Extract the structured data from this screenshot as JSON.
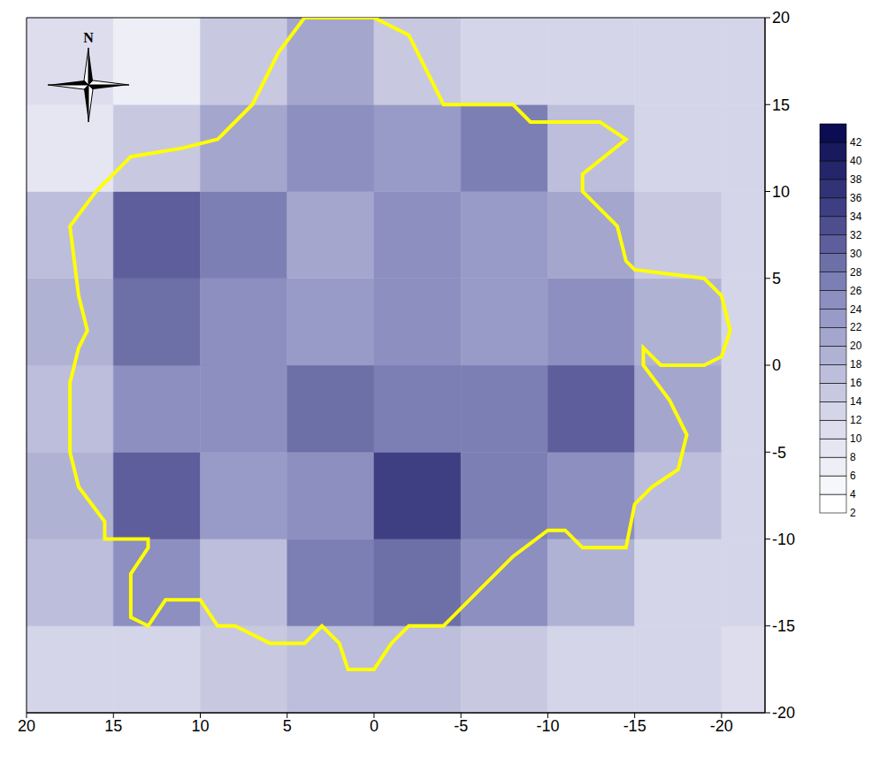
{
  "chart_data": {
    "type": "heatmap",
    "xlim": [
      20,
      -22.5
    ],
    "ylim": [
      -20,
      20
    ],
    "xticks": [
      20,
      15,
      10,
      5,
      0,
      -5,
      -10,
      -15,
      -20
    ],
    "yticks": [
      -20,
      -15,
      -10,
      -5,
      0,
      5,
      10,
      15,
      20
    ],
    "x_edges": [
      20,
      15,
      10,
      5,
      0,
      -5,
      -10,
      -15,
      -20,
      -22.5
    ],
    "y_edges": [
      -20,
      -15,
      -10,
      -5,
      0,
      5,
      10,
      15,
      20
    ],
    "cells": [
      [
        12,
        12,
        14,
        16,
        16,
        14,
        12,
        12,
        10
      ],
      [
        16,
        24,
        16,
        26,
        28,
        24,
        18,
        12,
        12
      ],
      [
        18,
        30,
        22,
        24,
        34,
        26,
        24,
        16,
        12
      ],
      [
        16,
        24,
        24,
        28,
        26,
        26,
        30,
        20,
        12
      ],
      [
        18,
        28,
        24,
        22,
        24,
        22,
        24,
        18,
        12
      ],
      [
        16,
        30,
        26,
        20,
        24,
        22,
        20,
        14,
        12
      ],
      [
        8,
        14,
        20,
        24,
        22,
        26,
        16,
        12,
        12
      ],
      [
        10,
        6,
        14,
        20,
        14,
        12,
        12,
        12,
        12
      ]
    ],
    "colorbar_range": [
      2,
      44
    ],
    "colorbar_ticks": [
      2,
      4,
      6,
      8,
      10,
      12,
      14,
      16,
      18,
      20,
      22,
      24,
      26,
      28,
      30,
      32,
      34,
      36,
      38,
      40,
      42
    ],
    "boundary": {
      "x": [
        4,
        0,
        -2,
        -3,
        -4,
        -8,
        -9,
        -13,
        -14.5,
        -12,
        -12,
        -13,
        -14,
        -14.5,
        -15,
        -19,
        -20,
        -20.5,
        -20,
        -19,
        -16.5,
        -15.5,
        -15.5,
        -17,
        -18,
        -17.5,
        -16,
        -15,
        -14.5,
        -12,
        -11,
        -10,
        -8,
        -6,
        -4,
        -2,
        -1,
        0,
        1.5,
        2,
        3,
        4,
        6,
        7,
        8,
        9,
        10,
        12,
        13,
        14,
        14,
        13,
        13,
        15.5,
        15.5,
        17,
        17.5,
        17.5,
        17,
        16.5,
        17,
        17.5,
        16,
        14,
        11,
        9,
        7,
        5.5,
        4
      ],
      "y": [
        20,
        20,
        19,
        17,
        15,
        15,
        14,
        14,
        13,
        11,
        10,
        9,
        8,
        6,
        5.5,
        5,
        4,
        2,
        0.5,
        0,
        0,
        1,
        0,
        -2,
        -4,
        -6,
        -7,
        -8,
        -10.5,
        -10.5,
        -9.5,
        -9.5,
        -11,
        -13,
        -15,
        -15,
        -16,
        -17.5,
        -17.5,
        -16,
        -15,
        -16,
        -16,
        -15.5,
        -15,
        -15,
        -13.5,
        -13.5,
        -15,
        -14.5,
        -12,
        -10.5,
        -10,
        -10,
        -9,
        -7,
        -5,
        -1,
        1,
        2,
        4,
        8,
        10,
        12,
        12.5,
        13,
        15,
        18,
        20
      ]
    },
    "annotations": [
      "N"
    ]
  }
}
